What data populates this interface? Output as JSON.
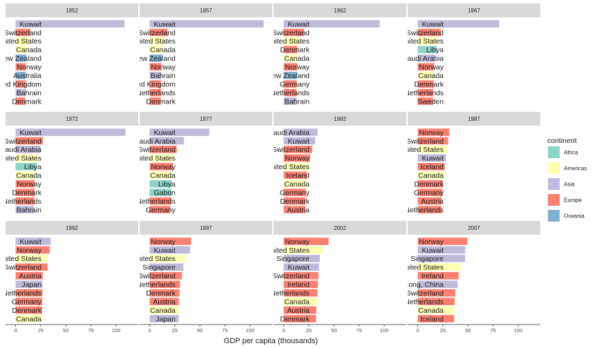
{
  "chart_data": {
    "type": "bar",
    "orientation": "horizontal",
    "facet_by": "year",
    "xlabel": "GDP per capita (thousands)",
    "xlim": [
      -10,
      122
    ],
    "x_ticks": [
      0,
      25,
      50,
      75,
      100
    ],
    "grid": false,
    "legend": {
      "title": "continent",
      "placement": "right",
      "entries": [
        {
          "name": "Africa",
          "color": "#8DD3C7"
        },
        {
          "name": "Americas",
          "color": "#FFFFB3"
        },
        {
          "name": "Asia",
          "color": "#BEBADA"
        },
        {
          "name": "Europe",
          "color": "#FB8072"
        },
        {
          "name": "Oceania",
          "color": "#80B1D3"
        }
      ]
    },
    "panels": [
      {
        "year": "1952",
        "bars": [
          {
            "country": "Kuwait",
            "value": 108.4,
            "continent": "Asia"
          },
          {
            "country": "Switzerland",
            "value": 14.7,
            "continent": "Europe"
          },
          {
            "country": "United States",
            "value": 13.99,
            "continent": "Americas"
          },
          {
            "country": "Canada",
            "value": 11.37,
            "continent": "Americas"
          },
          {
            "country": "New Zealand",
            "value": 10.56,
            "continent": "Oceania"
          },
          {
            "country": "Norway",
            "value": 10.1,
            "continent": "Europe"
          },
          {
            "country": "Australia",
            "value": 10.04,
            "continent": "Oceania"
          },
          {
            "country": "United Kingdom",
            "value": 9.98,
            "continent": "Europe"
          },
          {
            "country": "Bahrain",
            "value": 9.87,
            "continent": "Asia"
          },
          {
            "country": "Denmark",
            "value": 9.69,
            "continent": "Europe"
          }
        ]
      },
      {
        "year": "1957",
        "bars": [
          {
            "country": "Kuwait",
            "value": 113.5,
            "continent": "Asia"
          },
          {
            "country": "Switzerland",
            "value": 17.9,
            "continent": "Europe"
          },
          {
            "country": "United States",
            "value": 14.85,
            "continent": "Americas"
          },
          {
            "country": "Canada",
            "value": 12.49,
            "continent": "Americas"
          },
          {
            "country": "New Zealand",
            "value": 12.25,
            "continent": "Oceania"
          },
          {
            "country": "Norway",
            "value": 11.65,
            "continent": "Europe"
          },
          {
            "country": "Bahrain",
            "value": 11.64,
            "continent": "Asia"
          },
          {
            "country": "United Kingdom",
            "value": 11.28,
            "continent": "Europe"
          },
          {
            "country": "Netherlands",
            "value": 11.28,
            "continent": "Europe"
          },
          {
            "country": "Denmark",
            "value": 11.1,
            "continent": "Europe"
          }
        ]
      },
      {
        "year": "1962",
        "bars": [
          {
            "country": "Kuwait",
            "value": 95.5,
            "continent": "Asia"
          },
          {
            "country": "Switzerland",
            "value": 20.43,
            "continent": "Europe"
          },
          {
            "country": "United States",
            "value": 16.17,
            "continent": "Americas"
          },
          {
            "country": "Denmark",
            "value": 13.58,
            "continent": "Europe"
          },
          {
            "country": "Canada",
            "value": 13.46,
            "continent": "Americas"
          },
          {
            "country": "Norway",
            "value": 13.45,
            "continent": "Europe"
          },
          {
            "country": "New Zealand",
            "value": 13.18,
            "continent": "Oceania"
          },
          {
            "country": "Germany",
            "value": 12.9,
            "continent": "Europe"
          },
          {
            "country": "Netherlands",
            "value": 12.79,
            "continent": "Europe"
          },
          {
            "country": "Bahrain",
            "value": 12.75,
            "continent": "Asia"
          }
        ]
      },
      {
        "year": "1967",
        "bars": [
          {
            "country": "Kuwait",
            "value": 80.9,
            "continent": "Asia"
          },
          {
            "country": "Switzerland",
            "value": 22.97,
            "continent": "Europe"
          },
          {
            "country": "United States",
            "value": 19.53,
            "continent": "Americas"
          },
          {
            "country": "Libya",
            "value": 18.77,
            "continent": "Africa"
          },
          {
            "country": "Saudi Arabia",
            "value": 16.9,
            "continent": "Asia"
          },
          {
            "country": "Norway",
            "value": 16.36,
            "continent": "Europe"
          },
          {
            "country": "Canada",
            "value": 16.08,
            "continent": "Americas"
          },
          {
            "country": "Denmark",
            "value": 15.94,
            "continent": "Europe"
          },
          {
            "country": "Netherlands",
            "value": 15.36,
            "continent": "Europe"
          },
          {
            "country": "Sweden",
            "value": 15.26,
            "continent": "Europe"
          }
        ]
      },
      {
        "year": "1972",
        "bars": [
          {
            "country": "Kuwait",
            "value": 109.3,
            "continent": "Asia"
          },
          {
            "country": "Switzerland",
            "value": 27.2,
            "continent": "Europe"
          },
          {
            "country": "Saudi Arabia",
            "value": 24.84,
            "continent": "Asia"
          },
          {
            "country": "United States",
            "value": 21.81,
            "continent": "Americas"
          },
          {
            "country": "Libya",
            "value": 21.01,
            "continent": "Africa"
          },
          {
            "country": "Canada",
            "value": 18.97,
            "continent": "Americas"
          },
          {
            "country": "Norway",
            "value": 18.97,
            "continent": "Europe"
          },
          {
            "country": "Denmark",
            "value": 18.87,
            "continent": "Europe"
          },
          {
            "country": "Netherlands",
            "value": 18.79,
            "continent": "Europe"
          },
          {
            "country": "Bahrain",
            "value": 18.27,
            "continent": "Asia"
          }
        ]
      },
      {
        "year": "1977",
        "bars": [
          {
            "country": "Kuwait",
            "value": 59.3,
            "continent": "Asia"
          },
          {
            "country": "Saudi Arabia",
            "value": 34.17,
            "continent": "Asia"
          },
          {
            "country": "Switzerland",
            "value": 26.98,
            "continent": "Europe"
          },
          {
            "country": "United States",
            "value": 24.07,
            "continent": "Americas"
          },
          {
            "country": "Norway",
            "value": 23.31,
            "continent": "Europe"
          },
          {
            "country": "Canada",
            "value": 22.09,
            "continent": "Americas"
          },
          {
            "country": "Libya",
            "value": 21.95,
            "continent": "Africa"
          },
          {
            "country": "Gabon",
            "value": 21.75,
            "continent": "Africa"
          },
          {
            "country": "Netherlands",
            "value": 21.21,
            "continent": "Europe"
          },
          {
            "country": "Germany",
            "value": 20.51,
            "continent": "Europe"
          }
        ]
      },
      {
        "year": "1982",
        "bars": [
          {
            "country": "Saudi Arabia",
            "value": 33.69,
            "continent": "Asia"
          },
          {
            "country": "Kuwait",
            "value": 31.35,
            "continent": "Asia"
          },
          {
            "country": "Switzerland",
            "value": 28.4,
            "continent": "Europe"
          },
          {
            "country": "Norway",
            "value": 26.3,
            "continent": "Europe"
          },
          {
            "country": "United States",
            "value": 25.01,
            "continent": "Americas"
          },
          {
            "country": "Iceland",
            "value": 23.27,
            "continent": "Europe"
          },
          {
            "country": "Canada",
            "value": 22.9,
            "continent": "Americas"
          },
          {
            "country": "Germany",
            "value": 22.03,
            "continent": "Europe"
          },
          {
            "country": "Denmark",
            "value": 21.69,
            "continent": "Europe"
          },
          {
            "country": "Austria",
            "value": 21.6,
            "continent": "Europe"
          }
        ]
      },
      {
        "year": "1987",
        "bars": [
          {
            "country": "Norway",
            "value": 31.54,
            "continent": "Europe"
          },
          {
            "country": "Switzerland",
            "value": 30.28,
            "continent": "Europe"
          },
          {
            "country": "United States",
            "value": 29.88,
            "continent": "Americas"
          },
          {
            "country": "Kuwait",
            "value": 28.12,
            "continent": "Asia"
          },
          {
            "country": "Iceland",
            "value": 26.92,
            "continent": "Europe"
          },
          {
            "country": "Canada",
            "value": 26.63,
            "continent": "Americas"
          },
          {
            "country": "Denmark",
            "value": 25.12,
            "continent": "Europe"
          },
          {
            "country": "Germany",
            "value": 24.64,
            "continent": "Europe"
          },
          {
            "country": "Austria",
            "value": 23.69,
            "continent": "Europe"
          },
          {
            "country": "Netherlands",
            "value": 23.65,
            "continent": "Europe"
          }
        ]
      },
      {
        "year": "1992",
        "bars": [
          {
            "country": "Kuwait",
            "value": 34.93,
            "continent": "Asia"
          },
          {
            "country": "Norway",
            "value": 33.97,
            "continent": "Europe"
          },
          {
            "country": "United States",
            "value": 32.0,
            "continent": "Americas"
          },
          {
            "country": "Switzerland",
            "value": 31.87,
            "continent": "Europe"
          },
          {
            "country": "Austria",
            "value": 27.04,
            "continent": "Europe"
          },
          {
            "country": "Japan",
            "value": 26.82,
            "continent": "Asia"
          },
          {
            "country": "Netherlands",
            "value": 26.79,
            "continent": "Europe"
          },
          {
            "country": "Germany",
            "value": 26.51,
            "continent": "Europe"
          },
          {
            "country": "Denmark",
            "value": 26.41,
            "continent": "Europe"
          },
          {
            "country": "Canada",
            "value": 26.34,
            "continent": "Americas"
          }
        ]
      },
      {
        "year": "1997",
        "bars": [
          {
            "country": "Norway",
            "value": 41.28,
            "continent": "Europe"
          },
          {
            "country": "Kuwait",
            "value": 40.3,
            "continent": "Asia"
          },
          {
            "country": "United States",
            "value": 35.77,
            "continent": "Americas"
          },
          {
            "country": "Singapore",
            "value": 33.52,
            "continent": "Asia"
          },
          {
            "country": "Switzerland",
            "value": 32.14,
            "continent": "Europe"
          },
          {
            "country": "Netherlands",
            "value": 30.25,
            "continent": "Europe"
          },
          {
            "country": "Denmark",
            "value": 29.8,
            "continent": "Europe"
          },
          {
            "country": "Austria",
            "value": 29.1,
            "continent": "Europe"
          },
          {
            "country": "Canada",
            "value": 28.95,
            "continent": "Americas"
          },
          {
            "country": "Japan",
            "value": 28.82,
            "continent": "Asia"
          }
        ]
      },
      {
        "year": "2002",
        "bars": [
          {
            "country": "Norway",
            "value": 44.68,
            "continent": "Europe"
          },
          {
            "country": "United States",
            "value": 39.1,
            "continent": "Americas"
          },
          {
            "country": "Singapore",
            "value": 36.02,
            "continent": "Asia"
          },
          {
            "country": "Kuwait",
            "value": 35.11,
            "continent": "Asia"
          },
          {
            "country": "Switzerland",
            "value": 34.48,
            "continent": "Europe"
          },
          {
            "country": "Ireland",
            "value": 34.08,
            "continent": "Europe"
          },
          {
            "country": "Netherlands",
            "value": 33.72,
            "continent": "Europe"
          },
          {
            "country": "Canada",
            "value": 33.33,
            "continent": "Americas"
          },
          {
            "country": "Austria",
            "value": 32.42,
            "continent": "Europe"
          },
          {
            "country": "Denmark",
            "value": 32.17,
            "continent": "Europe"
          }
        ]
      },
      {
        "year": "2007",
        "bars": [
          {
            "country": "Norway",
            "value": 49.36,
            "continent": "Europe"
          },
          {
            "country": "Kuwait",
            "value": 47.31,
            "continent": "Asia"
          },
          {
            "country": "Singapore",
            "value": 47.14,
            "continent": "Asia"
          },
          {
            "country": "United States",
            "value": 42.95,
            "continent": "Americas"
          },
          {
            "country": "Ireland",
            "value": 40.68,
            "continent": "Europe"
          },
          {
            "country": "Hong Kong, China",
            "value": 39.72,
            "continent": "Asia"
          },
          {
            "country": "Switzerland",
            "value": 37.51,
            "continent": "Europe"
          },
          {
            "country": "Netherlands",
            "value": 36.8,
            "continent": "Europe"
          },
          {
            "country": "Canada",
            "value": 36.32,
            "continent": "Americas"
          },
          {
            "country": "Iceland",
            "value": 36.18,
            "continent": "Europe"
          }
        ]
      }
    ]
  }
}
